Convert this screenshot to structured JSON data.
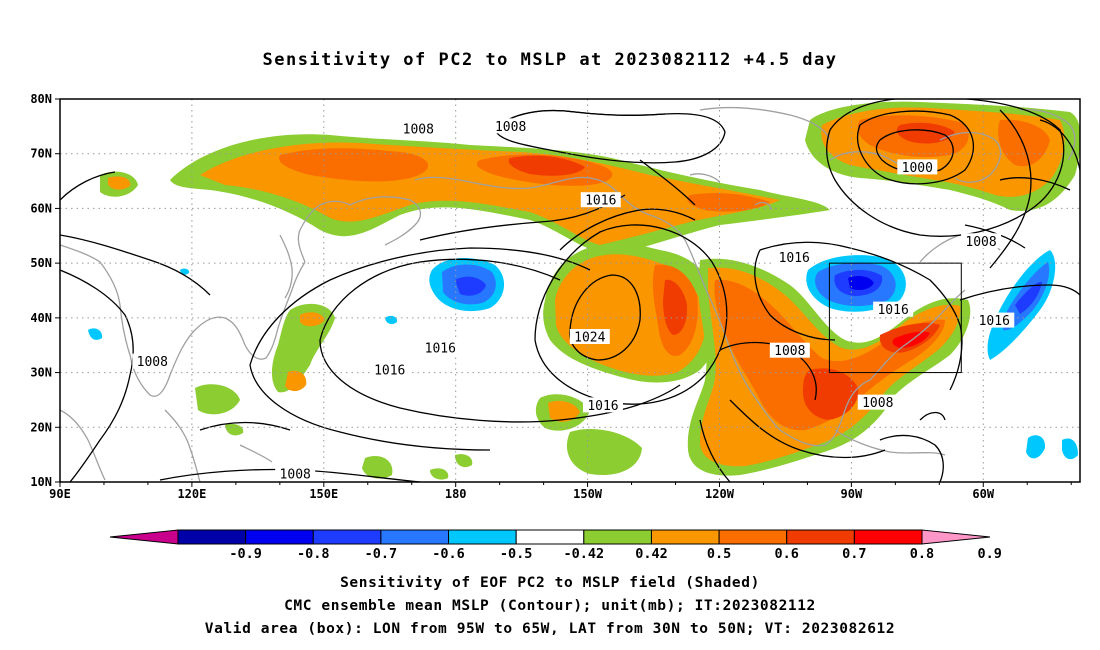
{
  "title": "Sensitivity of PC2 to MSLP at 2023082112 +4.5 day",
  "map": {
    "lat_labels": [
      "80N",
      "70N",
      "60N",
      "50N",
      "40N",
      "30N",
      "20N",
      "10N"
    ],
    "lon_labels": [
      "90E",
      "120E",
      "150E",
      "180",
      "150W",
      "120W",
      "90W",
      "60W"
    ],
    "lon_range": [
      90,
      322
    ],
    "lat_range": [
      10,
      80
    ],
    "grid": "dotted",
    "coastline_color": "#a0a0a0",
    "contour_color": "#000000"
  },
  "contour_labels": [
    {
      "text": "1008",
      "lon": 171.5,
      "lat": 74.5
    },
    {
      "text": "1008",
      "lon": 192.5,
      "lat": 75.0
    },
    {
      "text": "1000",
      "lon": 285.0,
      "lat": 67.5
    },
    {
      "text": "1008",
      "lon": 299.5,
      "lat": 54.0
    },
    {
      "text": "1016",
      "lon": 213.0,
      "lat": 61.5
    },
    {
      "text": "1016",
      "lon": 257.0,
      "lat": 51.0
    },
    {
      "text": "1016",
      "lon": 279.5,
      "lat": 41.5
    },
    {
      "text": "1016",
      "lon": 302.5,
      "lat": 39.5
    },
    {
      "text": "1024",
      "lon": 210.5,
      "lat": 36.5
    },
    {
      "text": "1016",
      "lon": 176.5,
      "lat": 34.5
    },
    {
      "text": "1016",
      "lon": 165.0,
      "lat": 30.5
    },
    {
      "text": "1016",
      "lon": 213.5,
      "lat": 24.0
    },
    {
      "text": "1008",
      "lon": 256.0,
      "lat": 34.0
    },
    {
      "text": "1008",
      "lon": 276.0,
      "lat": 24.5
    },
    {
      "text": "1008",
      "lon": 111.0,
      "lat": 32.0
    },
    {
      "text": "1008",
      "lon": 143.5,
      "lat": 11.5
    }
  ],
  "valid_box": {
    "lon_min": 265,
    "lon_max": 295,
    "lat_min": 30,
    "lat_max": 50
  },
  "colorbar": {
    "labels": [
      "-0.9",
      "-0.8",
      "-0.7",
      "-0.6",
      "-0.5",
      "-0.42",
      "0.42",
      "0.5",
      "0.6",
      "0.7",
      "0.8",
      "0.9"
    ],
    "colors": [
      "#0000a8",
      "#0000f0",
      "#1e3cff",
      "#2878ff",
      "#00c8ff",
      "#ffffff",
      "#8ccd32",
      "#fa9600",
      "#fa6e00",
      "#f03c00",
      "#ff0000"
    ],
    "end_low": "#c8008c",
    "end_high": "#ff96c8"
  },
  "captions": [
    "Sensitivity of EOF PC2 to MSLP field (Shaded)",
    "CMC ensemble mean MSLP (Contour); unit(mb); IT:2023082112",
    "Valid area (box): LON from 95W to 65W, LAT from 30N to 50N; VT: 2023082612"
  ]
}
